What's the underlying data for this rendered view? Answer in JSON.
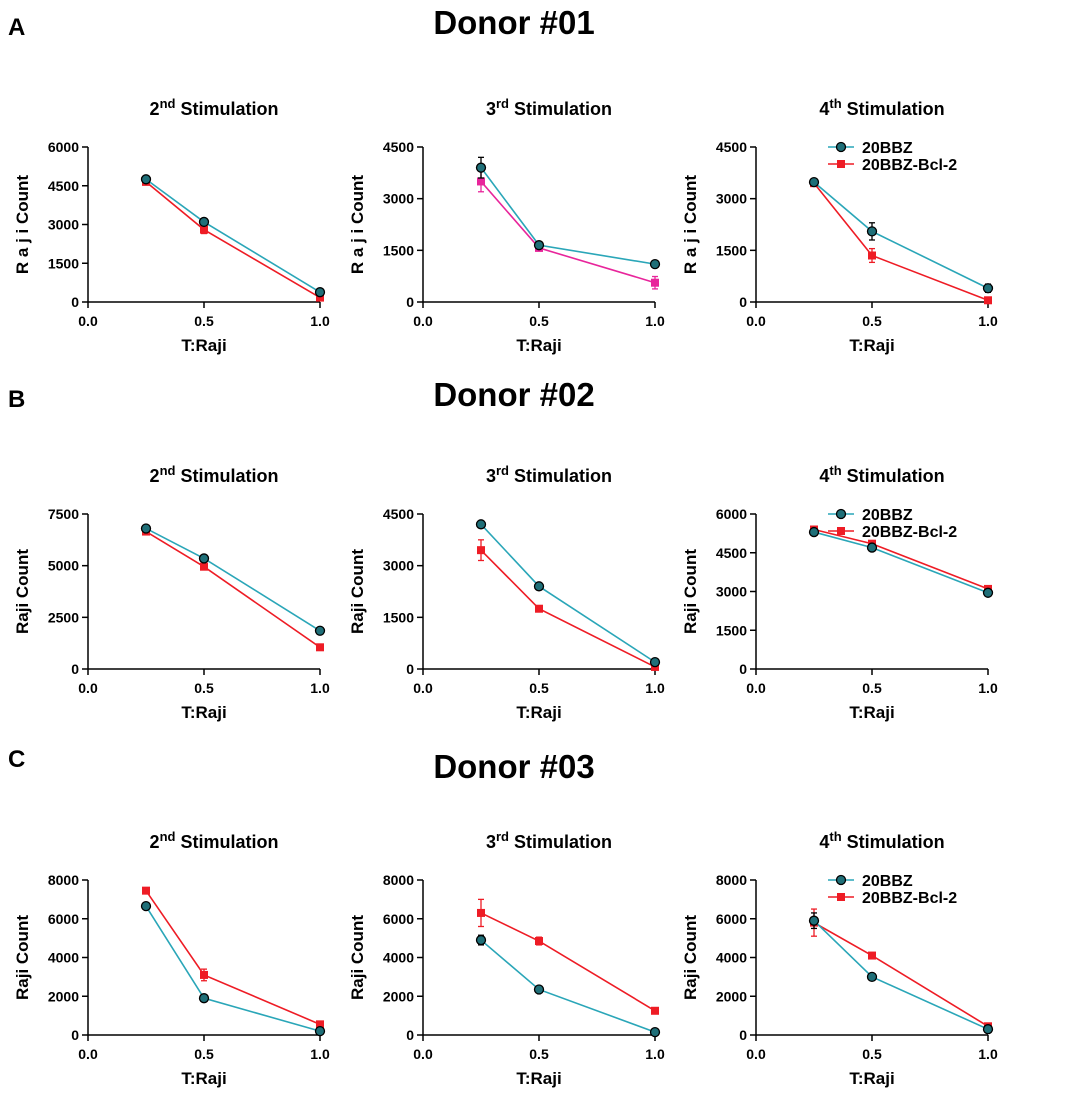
{
  "colors": {
    "series1": "#2aa6b8",
    "series2": "#ee1c25",
    "series2_alt": "#e8259b",
    "marker1": "#1f6f78"
  },
  "panels": [
    {
      "letter": "A",
      "title": "Donor #01"
    },
    {
      "letter": "B",
      "title": "Donor #02"
    },
    {
      "letter": "C",
      "title": "Donor #03"
    }
  ],
  "chart_data": [
    {
      "type": "line",
      "title": "2nd Stimulation",
      "title_base": "2",
      "title_sup": "nd",
      "title_rest": " Stimulation",
      "xlabel": "T:Raji",
      "ylabel": "R a j i Count",
      "xlim": [
        0,
        1
      ],
      "ylim": [
        0,
        6000
      ],
      "xticks": [
        "0.0",
        "0.5",
        "1.0"
      ],
      "yticks": [
        "0",
        "1500",
        "3000",
        "4500",
        "6000"
      ],
      "x": [
        0.25,
        0.5,
        1.0
      ],
      "legend": null,
      "series": [
        {
          "name": "20BBZ",
          "values": [
            4750,
            3100,
            380
          ],
          "errors": [
            60,
            120,
            50
          ]
        },
        {
          "name": "20BBZ-Bcl-2",
          "values": [
            4650,
            2800,
            170
          ],
          "errors": [
            50,
            150,
            60
          ]
        }
      ]
    },
    {
      "type": "line",
      "title": "3rd Stimulation",
      "title_base": "3",
      "title_sup": "rd",
      "title_rest": " Stimulation",
      "xlabel": "T:Raji",
      "ylabel": "R a j i Count",
      "xlim": [
        0,
        1
      ],
      "ylim": [
        0,
        4500
      ],
      "xticks": [
        "0.0",
        "0.5",
        "1.0"
      ],
      "yticks": [
        "0",
        "1500",
        "3000",
        "4500"
      ],
      "x": [
        0.25,
        0.5,
        1.0
      ],
      "legend": null,
      "series": [
        {
          "name": "20BBZ",
          "values": [
            3900,
            1650,
            1100
          ],
          "errors": [
            300,
            80,
            100
          ]
        },
        {
          "name": "20BBZ-Bcl-2",
          "values": [
            3500,
            1570,
            560
          ],
          "errors": [
            300,
            80,
            180
          ]
        }
      ]
    },
    {
      "type": "line",
      "title": "4th Stimulation",
      "title_base": "4",
      "title_sup": "th",
      "title_rest": " Stimulation",
      "xlabel": "T:Raji",
      "ylabel": "R a j i Count",
      "xlim": [
        0,
        1
      ],
      "ylim": [
        0,
        4500
      ],
      "xticks": [
        "0.0",
        "0.5",
        "1.0"
      ],
      "yticks": [
        "0",
        "1500",
        "3000",
        "4500"
      ],
      "x": [
        0.25,
        0.5,
        1.0
      ],
      "legend": "top-right",
      "series": [
        {
          "name": "20BBZ",
          "values": [
            3480,
            2050,
            400
          ],
          "errors": [
            100,
            250,
            120
          ]
        },
        {
          "name": "20BBZ-Bcl-2",
          "values": [
            3450,
            1350,
            50
          ],
          "errors": [
            90,
            200,
            40
          ]
        }
      ]
    },
    {
      "type": "line",
      "title": "2nd Stimulation",
      "title_base": "2",
      "title_sup": "nd",
      "title_rest": " Stimulation",
      "xlabel": "T:Raji",
      "ylabel": "Raji Count",
      "xlim": [
        0,
        1
      ],
      "ylim": [
        0,
        7500
      ],
      "xticks": [
        "0.0",
        "0.5",
        "1.0"
      ],
      "yticks": [
        "0",
        "2500",
        "5000",
        "7500"
      ],
      "x": [
        0.25,
        0.5,
        1.0
      ],
      "legend": null,
      "series": [
        {
          "name": "20BBZ",
          "values": [
            6800,
            5350,
            1850
          ],
          "errors": [
            80,
            80,
            60
          ]
        },
        {
          "name": "20BBZ-Bcl-2",
          "values": [
            6650,
            4950,
            1050
          ],
          "errors": [
            70,
            80,
            50
          ]
        }
      ]
    },
    {
      "type": "line",
      "title": "3rd Stimulation",
      "title_base": "3",
      "title_sup": "rd",
      "title_rest": " Stimulation",
      "xlabel": "T:Raji",
      "ylabel": "Raji Count",
      "xlim": [
        0,
        1
      ],
      "ylim": [
        0,
        4500
      ],
      "xticks": [
        "0.0",
        "0.5",
        "1.0"
      ],
      "yticks": [
        "0",
        "1500",
        "3000",
        "4500"
      ],
      "x": [
        0.25,
        0.5,
        1.0
      ],
      "legend": null,
      "series": [
        {
          "name": "20BBZ",
          "values": [
            4200,
            2400,
            200
          ],
          "errors": [
            60,
            60,
            40
          ]
        },
        {
          "name": "20BBZ-Bcl-2",
          "values": [
            3450,
            1750,
            60
          ],
          "errors": [
            300,
            60,
            30
          ]
        }
      ]
    },
    {
      "type": "line",
      "title": "4th Stimulation",
      "title_base": "4",
      "title_sup": "th",
      "title_rest": " Stimulation",
      "xlabel": "T:Raji",
      "ylabel": "Raji Count",
      "xlim": [
        0,
        1
      ],
      "ylim": [
        0,
        6000
      ],
      "xticks": [
        "0.0",
        "0.5",
        "1.0"
      ],
      "yticks": [
        "0",
        "1500",
        "3000",
        "4500",
        "6000"
      ],
      "x": [
        0.25,
        0.5,
        1.0
      ],
      "legend": "top-right",
      "series": [
        {
          "name": "20BBZ",
          "values": [
            5300,
            4700,
            2950
          ],
          "errors": [
            60,
            60,
            60
          ]
        },
        {
          "name": "20BBZ-Bcl-2",
          "values": [
            5400,
            4850,
            3100
          ],
          "errors": [
            60,
            60,
            60
          ]
        }
      ]
    },
    {
      "type": "line",
      "title": "2nd Stimulation",
      "title_base": "2",
      "title_sup": "nd",
      "title_rest": " Stimulation",
      "xlabel": "T:Raji",
      "ylabel": "Raji Count",
      "xlim": [
        0,
        1
      ],
      "ylim": [
        0,
        8000
      ],
      "xticks": [
        "0.0",
        "0.5",
        "1.0"
      ],
      "yticks": [
        "0",
        "2000",
        "4000",
        "6000",
        "8000"
      ],
      "x": [
        0.25,
        0.5,
        1.0
      ],
      "legend": null,
      "series": [
        {
          "name": "20BBZ",
          "values": [
            6650,
            1900,
            200
          ],
          "errors": [
            150,
            80,
            60
          ]
        },
        {
          "name": "20BBZ-Bcl-2",
          "values": [
            7450,
            3100,
            550
          ],
          "errors": [
            80,
            300,
            100
          ]
        }
      ]
    },
    {
      "type": "line",
      "title": "3rd Stimulation",
      "title_base": "3",
      "title_sup": "rd",
      "title_rest": " Stimulation",
      "xlabel": "T:Raji",
      "ylabel": "Raji Count",
      "xlim": [
        0,
        1
      ],
      "ylim": [
        0,
        8000
      ],
      "xticks": [
        "0.0",
        "0.5",
        "1.0"
      ],
      "yticks": [
        "0",
        "2000",
        "4000",
        "6000",
        "8000"
      ],
      "x": [
        0.25,
        0.5,
        1.0
      ],
      "legend": null,
      "series": [
        {
          "name": "20BBZ",
          "values": [
            4900,
            2350,
            150
          ],
          "errors": [
            250,
            80,
            50
          ]
        },
        {
          "name": "20BBZ-Bcl-2",
          "values": [
            6300,
            4850,
            1250
          ],
          "errors": [
            700,
            200,
            100
          ]
        }
      ]
    },
    {
      "type": "line",
      "title": "4th Stimulation",
      "title_base": "4",
      "title_sup": "th",
      "title_rest": " Stimulation",
      "xlabel": "T:Raji",
      "ylabel": "Raji Count",
      "xlim": [
        0,
        1
      ],
      "ylim": [
        0,
        8000
      ],
      "xticks": [
        "0.0",
        "0.5",
        "1.0"
      ],
      "yticks": [
        "0",
        "2000",
        "4000",
        "6000",
        "8000"
      ],
      "x": [
        0.25,
        0.5,
        1.0
      ],
      "legend": "top-right",
      "series": [
        {
          "name": "20BBZ",
          "values": [
            5900,
            3000,
            300
          ],
          "errors": [
            400,
            100,
            80
          ]
        },
        {
          "name": "20BBZ-Bcl-2",
          "values": [
            5800,
            4100,
            450
          ],
          "errors": [
            700,
            100,
            80
          ]
        }
      ]
    }
  ]
}
